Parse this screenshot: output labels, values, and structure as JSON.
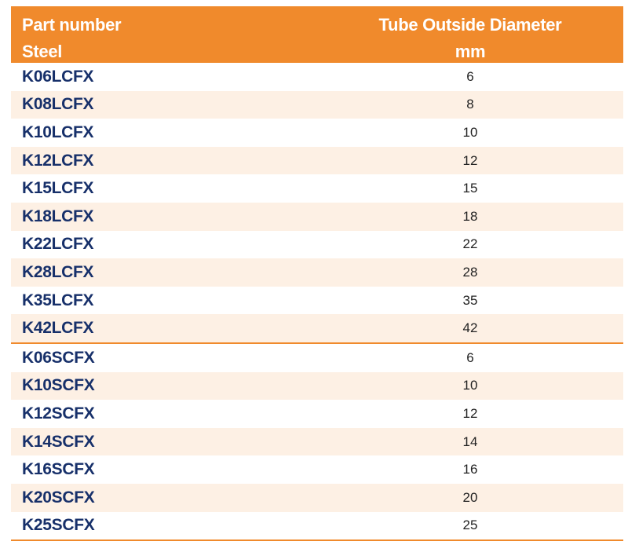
{
  "header": {
    "col1_line1": "Part number",
    "col1_line2": "Steel",
    "col2_line1": "Tube Outside Diameter",
    "col2_line2": "mm"
  },
  "colors": {
    "accent": "#f08a2c",
    "row_shade": "#fdf0e4",
    "part_text": "#17306a"
  },
  "groups": [
    {
      "rows": [
        {
          "part": "K06LCFX",
          "diameter": "6"
        },
        {
          "part": "K08LCFX",
          "diameter": "8"
        },
        {
          "part": "K10LCFX",
          "diameter": "10"
        },
        {
          "part": "K12LCFX",
          "diameter": "12"
        },
        {
          "part": "K15LCFX",
          "diameter": "15"
        },
        {
          "part": "K18LCFX",
          "diameter": "18"
        },
        {
          "part": "K22LCFX",
          "diameter": "22"
        },
        {
          "part": "K28LCFX",
          "diameter": "28"
        },
        {
          "part": "K35LCFX",
          "diameter": "35"
        },
        {
          "part": "K42LCFX",
          "diameter": "42"
        }
      ]
    },
    {
      "rows": [
        {
          "part": "K06SCFX",
          "diameter": "6"
        },
        {
          "part": "K10SCFX",
          "diameter": "10"
        },
        {
          "part": "K12SCFX",
          "diameter": "12"
        },
        {
          "part": "K14SCFX",
          "diameter": "14"
        },
        {
          "part": "K16SCFX",
          "diameter": "16"
        },
        {
          "part": "K20SCFX",
          "diameter": "20"
        },
        {
          "part": "K25SCFX",
          "diameter": "25"
        }
      ]
    }
  ]
}
